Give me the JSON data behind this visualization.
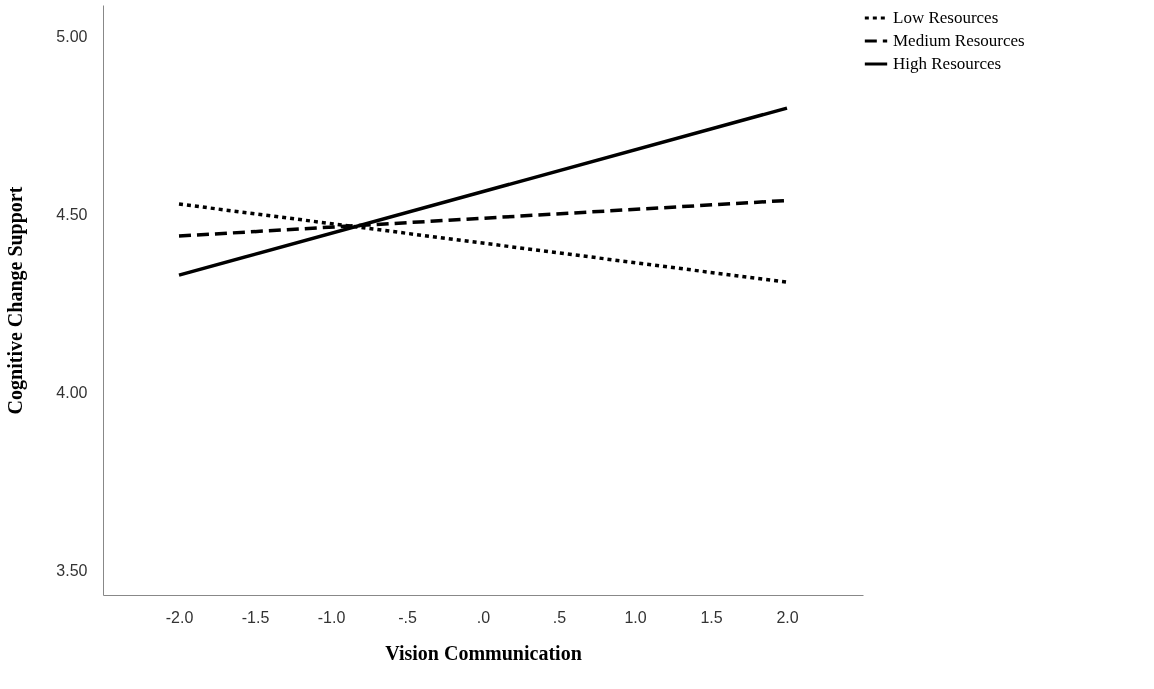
{
  "chart_data": {
    "type": "line",
    "xlabel": "Vision Communication",
    "ylabel": "Cognitive Change Support",
    "x": [
      -2.0,
      2.0
    ],
    "series": [
      {
        "name": "Low Resources",
        "color": "#000000",
        "line_style": "dotted",
        "values": [
          4.53,
          4.31
        ]
      },
      {
        "name": "Medium Resources",
        "color": "#000000",
        "line_style": "dashed",
        "values": [
          4.44,
          4.54
        ]
      },
      {
        "name": "High Resources",
        "color": "#000000",
        "line_style": "solid",
        "values": [
          4.33,
          4.8
        ]
      }
    ],
    "xlim": [
      -2.5,
      2.5
    ],
    "xticks": [
      {
        "value": -2.0,
        "label": "-2.0"
      },
      {
        "value": -1.5,
        "label": "-1.5"
      },
      {
        "value": -1.0,
        "label": "-1.0"
      },
      {
        "value": -0.5,
        "label": "-.5"
      },
      {
        "value": 0,
        "label": ".0"
      },
      {
        "value": 0.5,
        "label": ".5"
      },
      {
        "value": 1.0,
        "label": "1.0"
      },
      {
        "value": 1.5,
        "label": "1.5"
      },
      {
        "value": 2.0,
        "label": "2.0"
      }
    ],
    "ylim": [
      3.43,
      5.09
    ],
    "yticks": [
      {
        "value": 3.5,
        "label": "3.50"
      },
      {
        "value": 4.0,
        "label": "4.00"
      },
      {
        "value": 4.5,
        "label": "4.50"
      },
      {
        "value": 5.0,
        "label": "5.00"
      }
    ],
    "grid": false,
    "legend": "top right",
    "marker": "none"
  }
}
